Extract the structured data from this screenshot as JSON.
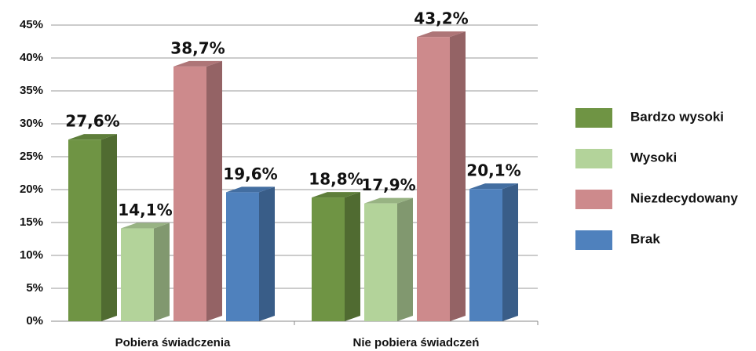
{
  "chart_data": {
    "type": "bar3d",
    "categories": [
      "Pobiera świadczenia",
      "Nie pobiera świadczeń"
    ],
    "series": [
      {
        "name": "Bardzo wysoki",
        "color": "#6f9444",
        "values": [
          27.6,
          18.8
        ],
        "value_labels": [
          "27,6%",
          "18,8%"
        ]
      },
      {
        "name": "Wysoki",
        "color": "#b3d39a",
        "values": [
          14.1,
          17.9
        ],
        "value_labels": [
          "14,1%",
          "17,9%"
        ]
      },
      {
        "name": "Niezdecydowany",
        "color": "#cd8a8c",
        "values": [
          38.7,
          43.2
        ],
        "value_labels": [
          "38,7%",
          "43,2%"
        ]
      },
      {
        "name": "Brak",
        "color": "#4f81bd",
        "values": [
          19.6,
          20.1
        ],
        "value_labels": [
          "19,6%",
          "20,1%"
        ]
      }
    ],
    "ylim": [
      0,
      45
    ],
    "yticks": [
      {
        "value": 0,
        "label": "0%"
      },
      {
        "value": 5,
        "label": "5%"
      },
      {
        "value": 10,
        "label": "10%"
      },
      {
        "value": 15,
        "label": "15%"
      },
      {
        "value": 20,
        "label": "20%"
      },
      {
        "value": 25,
        "label": "25%"
      },
      {
        "value": 30,
        "label": "30%"
      },
      {
        "value": 35,
        "label": "35%"
      },
      {
        "value": 40,
        "label": "40%"
      },
      {
        "value": 45,
        "label": "45%"
      }
    ],
    "grid": true,
    "legend": "right"
  }
}
